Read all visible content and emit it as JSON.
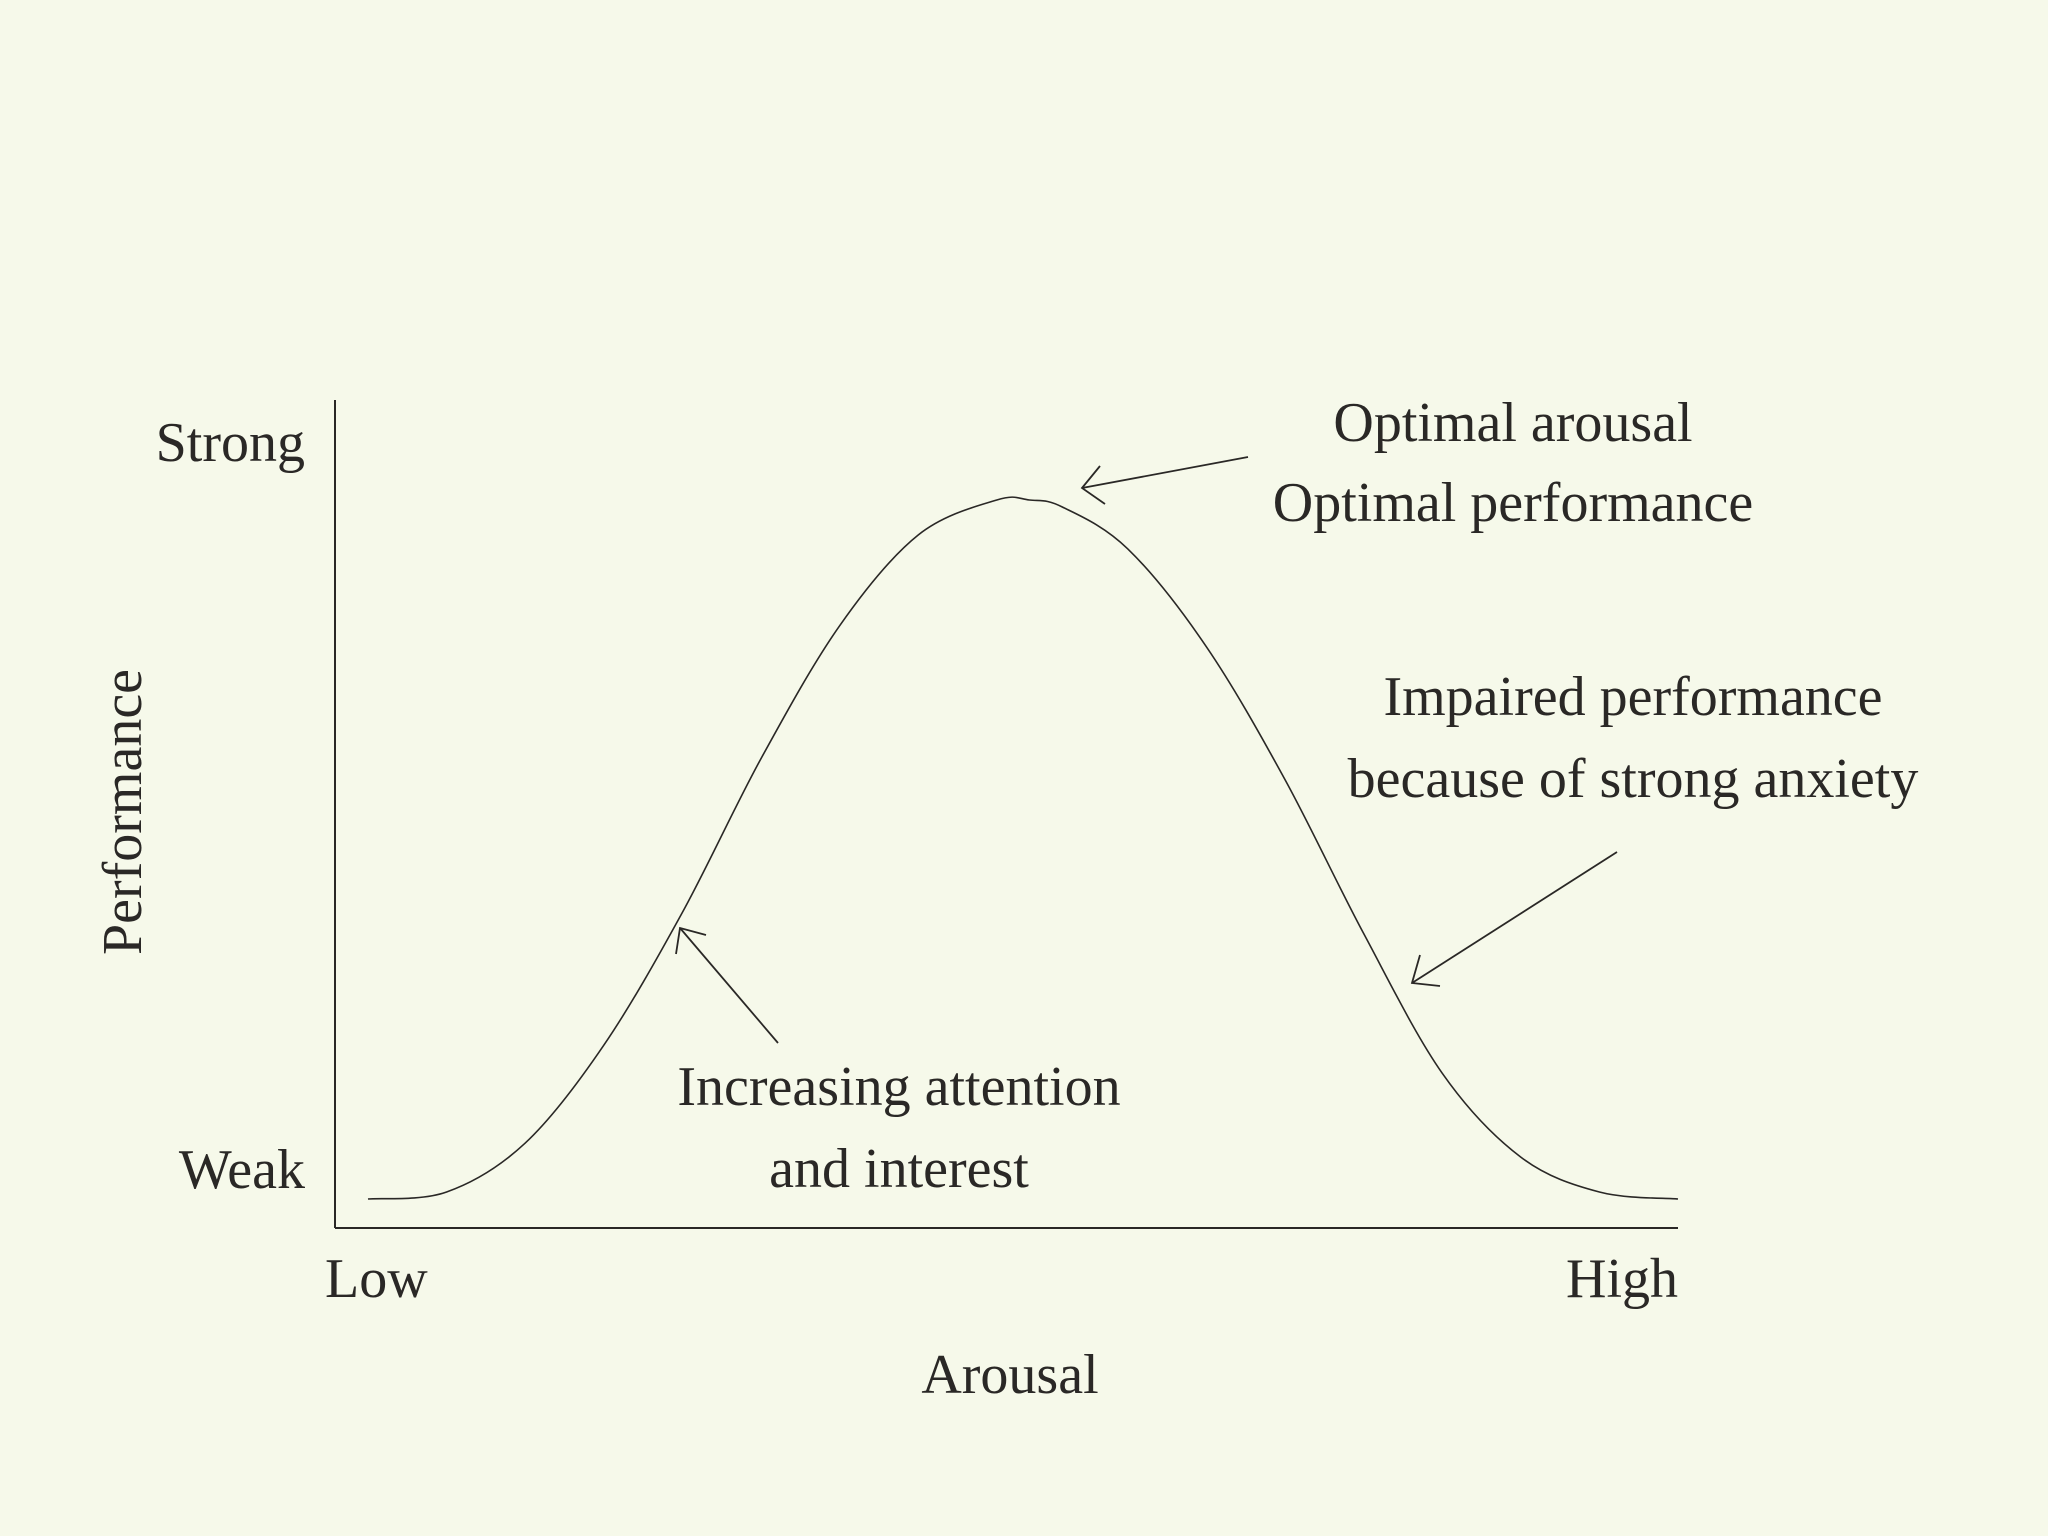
{
  "chart_data": {
    "type": "line",
    "title": "",
    "xlabel": "Arousal",
    "ylabel": "Performance",
    "x_tick_labels": [
      "Low",
      "High"
    ],
    "y_tick_labels": [
      "Weak",
      "Strong"
    ],
    "xlim": [
      0,
      1
    ],
    "ylim": [
      0,
      1
    ],
    "grid": false,
    "series": [
      {
        "x": [
          0.0,
          0.06,
          0.12,
          0.18,
          0.24,
          0.3,
          0.36,
          0.42,
          0.48,
          0.505,
          0.53,
          0.58,
          0.64,
          0.7,
          0.76,
          0.82,
          0.88,
          0.94,
          1.0
        ],
        "y": [
          0.0,
          0.01,
          0.08,
          0.22,
          0.41,
          0.63,
          0.82,
          0.95,
          1.0,
          1.0,
          0.99,
          0.93,
          0.79,
          0.6,
          0.38,
          0.18,
          0.06,
          0.01,
          0.0
        ]
      }
    ],
    "annotations": [
      {
        "lines": [
          "Optimal arousal",
          "Optimal performance"
        ],
        "x": 0.53,
        "y": 0.99
      },
      {
        "lines": [
          "Impaired performance",
          "because of strong anxiety"
        ],
        "x": 0.78,
        "y": 0.33
      },
      {
        "lines": [
          "Increasing attention",
          "and interest"
        ],
        "x": 0.23,
        "y": 0.38
      }
    ]
  }
}
